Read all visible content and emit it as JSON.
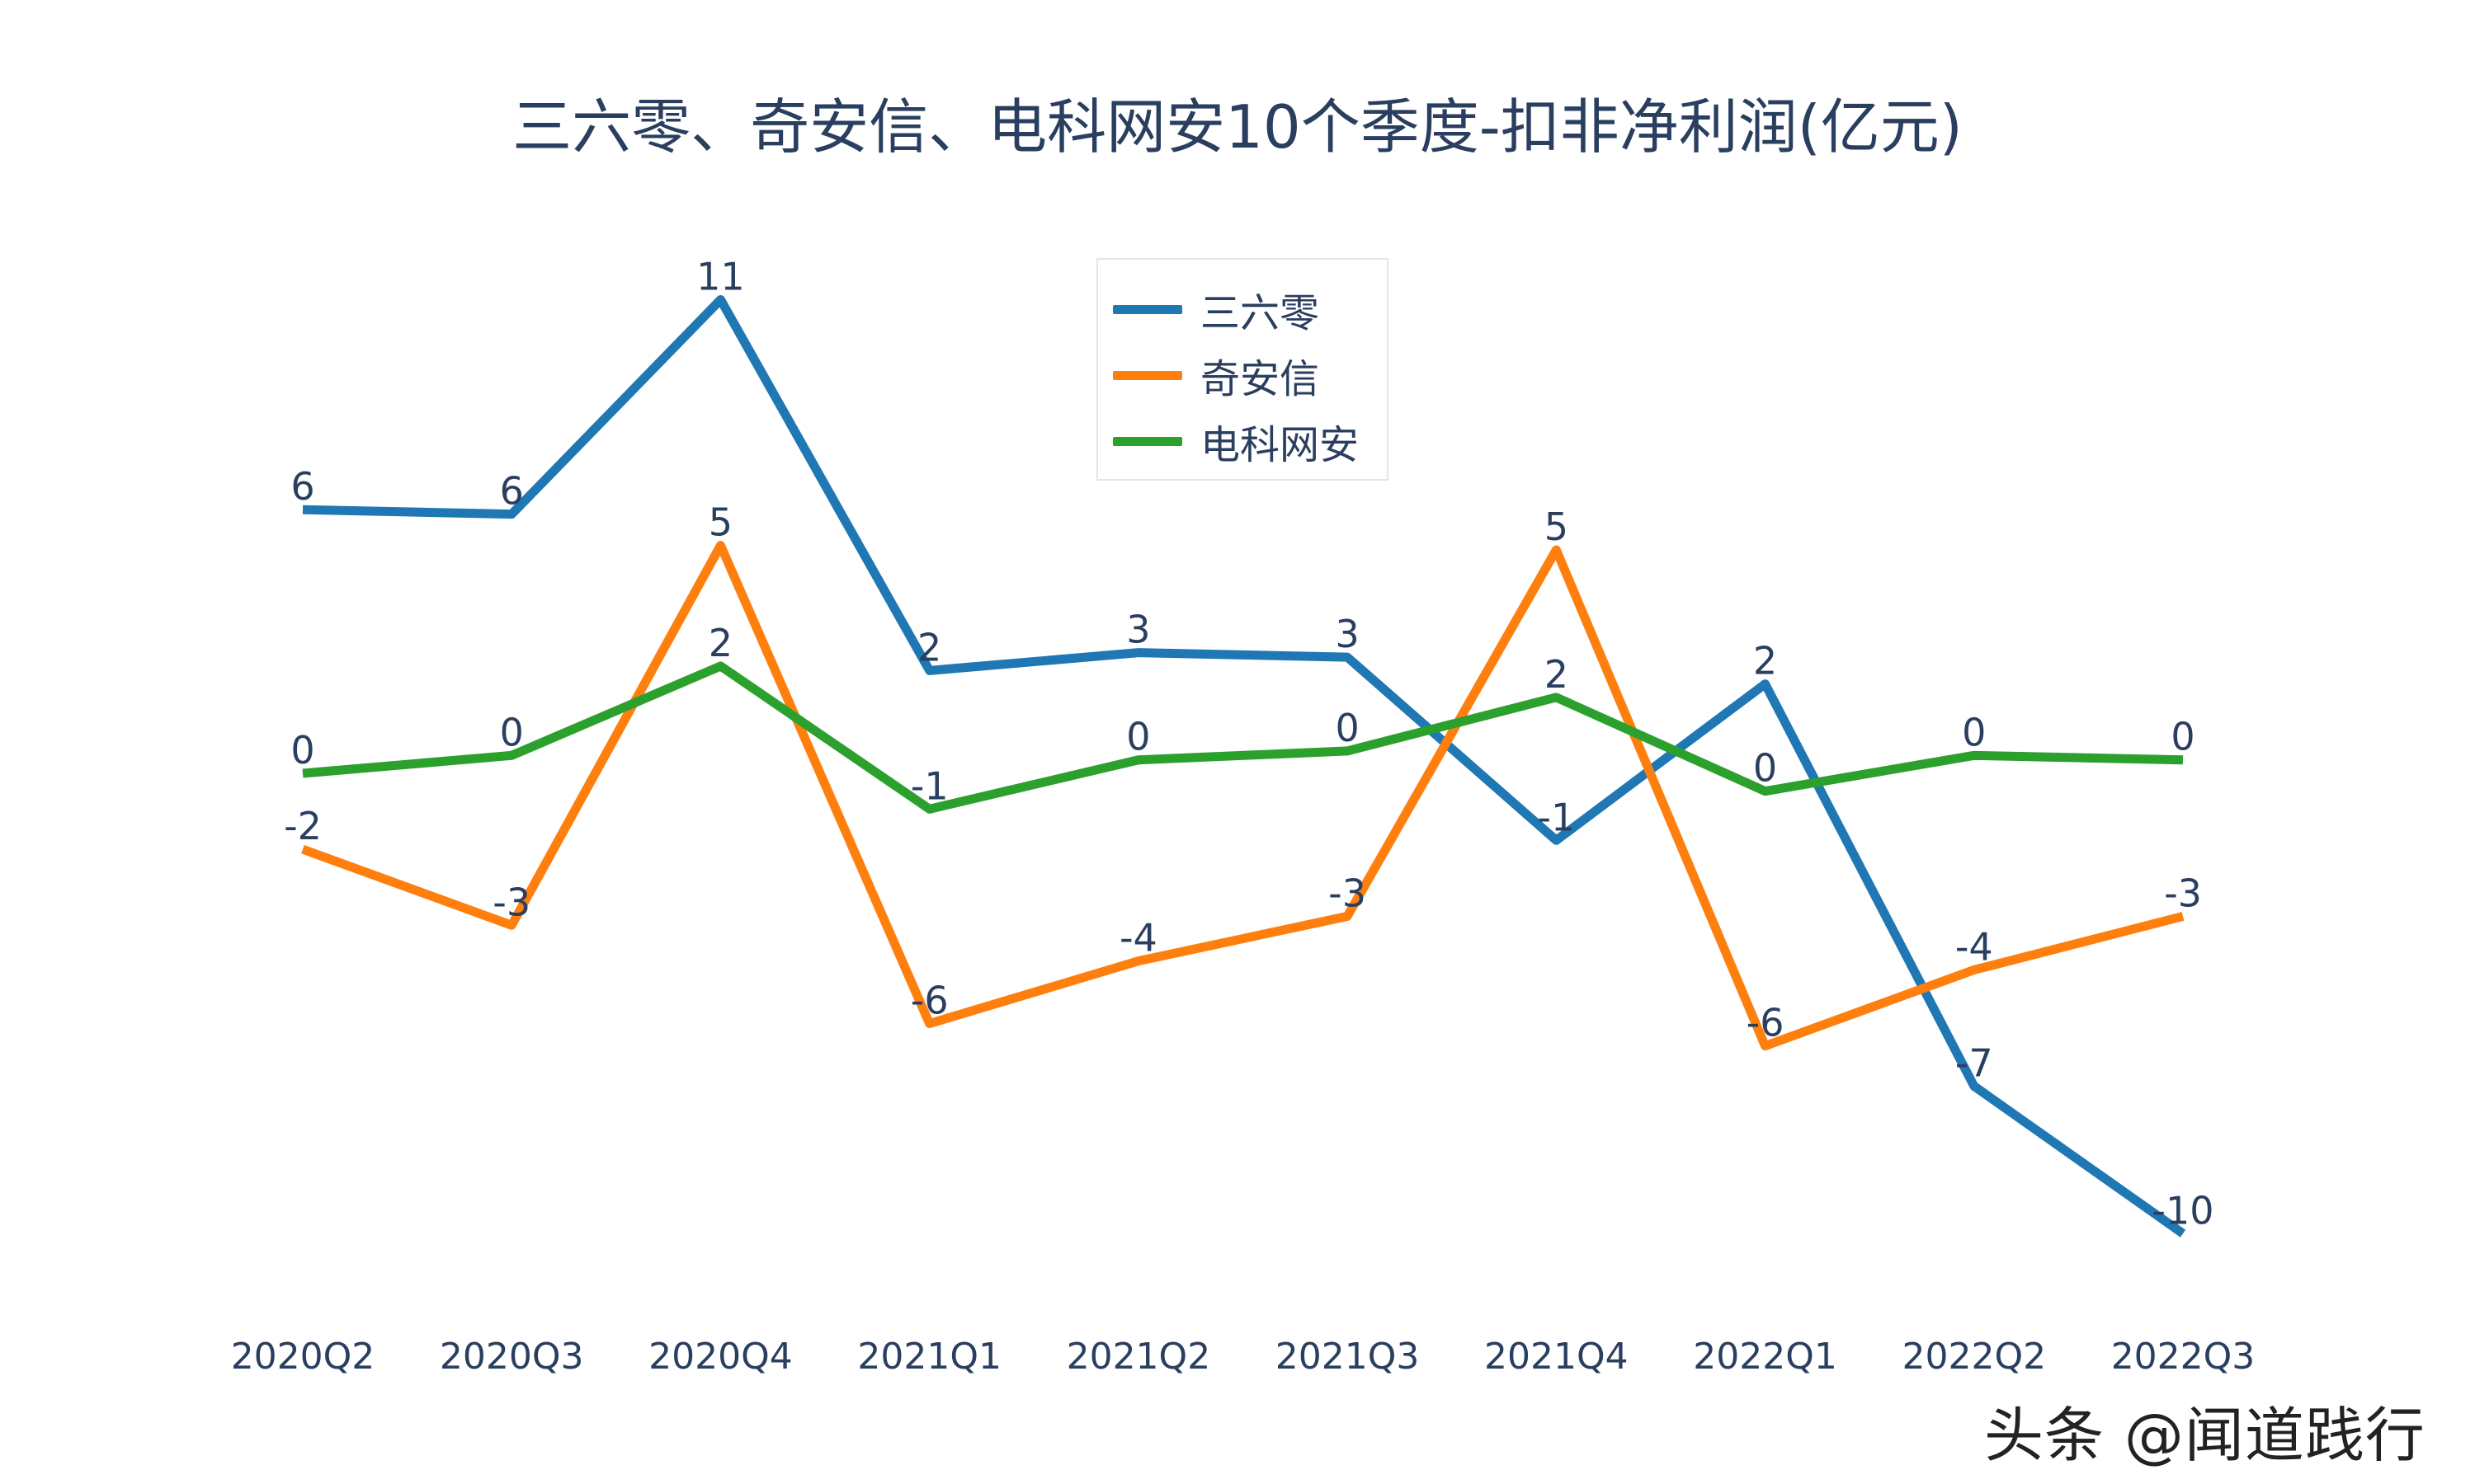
{
  "chart_data": {
    "type": "line",
    "title": "三六零、奇安信、电科网安10个季度-扣非净利润(亿元)",
    "categories": [
      "2020Q2",
      "2020Q3",
      "2020Q4",
      "2021Q1",
      "2021Q2",
      "2021Q3",
      "2021Q4",
      "2022Q1",
      "2022Q2",
      "2022Q3"
    ],
    "series": [
      {
        "name": "三六零",
        "color": "#1f77b4",
        "values": [
          5.9,
          5.8,
          10.6,
          2.3,
          2.7,
          2.6,
          -1.5,
          2.0,
          -7.0,
          -10.3
        ],
        "labels": [
          "6",
          "6",
          "11",
          "2",
          "3",
          "3",
          "-1",
          "2",
          "-7",
          "-10"
        ]
      },
      {
        "name": "奇安信",
        "color": "#ff7f0e",
        "values": [
          -1.7,
          -3.4,
          5.1,
          -5.6,
          -4.2,
          -3.2,
          5.0,
          -6.1,
          -4.4,
          -3.2
        ],
        "labels": [
          "-2",
          "-3",
          "5",
          "-6",
          "-4",
          "-3",
          "5",
          "-6",
          "-4",
          "-3"
        ]
      },
      {
        "name": "电科网安",
        "color": "#2ca02c",
        "values": [
          0.0,
          0.4,
          2.4,
          -0.8,
          0.3,
          0.5,
          1.7,
          -0.4,
          0.4,
          0.3
        ],
        "labels": [
          "0",
          "0",
          "2",
          "-1",
          "0",
          "0",
          "2",
          "0",
          "0",
          "0"
        ]
      }
    ],
    "xlabel": "",
    "ylabel": "",
    "grid": false,
    "legend": "top-center"
  },
  "watermark": "头条 @闻道践行"
}
